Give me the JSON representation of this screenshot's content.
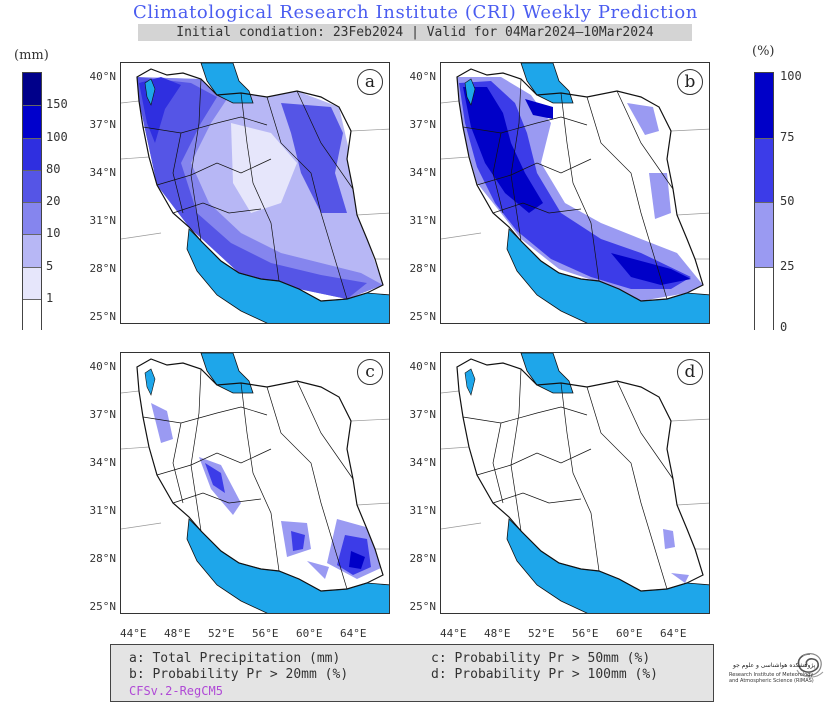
{
  "header": {
    "title": "Climatological Research Institute (CRI) Weekly Prediction",
    "subtitle": "Initial condiation: 23Feb2024 | Valid for 04Mar2024–10Mar2024"
  },
  "left_colorbar": {
    "unit": "(mm)",
    "levels": [
      "1",
      "5",
      "10",
      "20",
      "80",
      "100",
      "150"
    ],
    "colors": [
      "#ffffff",
      "#e6e6fb",
      "#b7b7f5",
      "#8585ee",
      "#5555e6",
      "#2f2fe0",
      "#0000cc",
      "#00008a"
    ]
  },
  "right_colorbar": {
    "unit": "(%)",
    "levels": [
      "0",
      "25",
      "50",
      "75",
      "100"
    ],
    "colors": [
      "#ffffff",
      "#9a9af2",
      "#3c3ce8",
      "#0000c8"
    ]
  },
  "panels": [
    {
      "label": "a",
      "fill": "precip"
    },
    {
      "label": "b",
      "fill": "prob20"
    },
    {
      "label": "c",
      "fill": "prob50"
    },
    {
      "label": "d",
      "fill": "prob100"
    }
  ],
  "axes": {
    "lat_labels": [
      "40°N",
      "37°N",
      "34°N",
      "31°N",
      "28°N",
      "25°N"
    ],
    "lon_labels": [
      "44°E",
      "48°E",
      "52°E",
      "56°E",
      "60°E",
      "64°E"
    ]
  },
  "legend": {
    "a": "a: Total Precipitation (mm)",
    "b": "b: Probability Pr > 20mm (%)",
    "c": "c: Probability Pr > 50mm (%)",
    "d": "d: Probability Pr > 100mm (%)",
    "source": "CFSv.2-RegCM5"
  },
  "logo": {
    "name_fa": "پژوهشکده هواشناسی و علوم جو",
    "name_en_1": "Research Institute of Meteorology",
    "name_en_2": "and Atmospheric Science (RIMAS)",
    "icon": "swirl-logo-icon"
  },
  "colors": {
    "sea": "#1ea6ea",
    "border": "#111111",
    "title": "#4a5cf0",
    "source": "#b04ad6"
  }
}
